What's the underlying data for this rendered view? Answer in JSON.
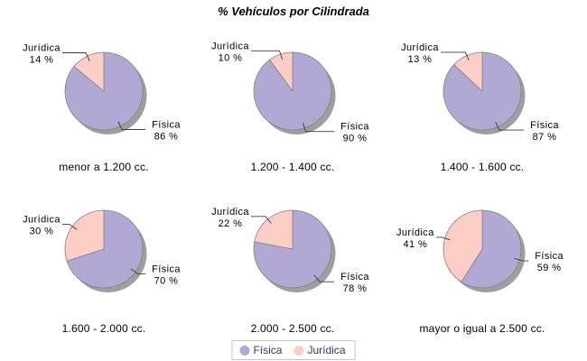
{
  "title": "% Vehículos por Cilindrada",
  "colors": {
    "background": "#ffffff",
    "fisica": "#b1a8d3",
    "juridica": "#fccec6",
    "shadow": "#9e9e9e",
    "slice_stroke": "#828282",
    "leader_line": "#3c3c3c",
    "legend_border": "#c6bfe2",
    "legend_text": "#472b7f"
  },
  "legend": {
    "items": [
      {
        "label": "Física",
        "color_key": "fisica"
      },
      {
        "label": "Jurídica",
        "color_key": "juridica"
      }
    ]
  },
  "chart_data": {
    "type": "pie",
    "title": "% Vehículos por Cilindrada",
    "legend_position": "bottom",
    "value_suffix": " %",
    "series_labels": [
      "Física",
      "Jurídica"
    ],
    "pies": [
      {
        "caption": "menor a 1.200 cc.",
        "slices": [
          {
            "label": "Física",
            "value": 86
          },
          {
            "label": "Jurídica",
            "value": 14
          }
        ]
      },
      {
        "caption": "1.200 - 1.400 cc.",
        "slices": [
          {
            "label": "Física",
            "value": 90
          },
          {
            "label": "Jurídica",
            "value": 10
          }
        ]
      },
      {
        "caption": "1.400 - 1.600 cc.",
        "slices": [
          {
            "label": "Física",
            "value": 87
          },
          {
            "label": "Jurídica",
            "value": 13
          }
        ]
      },
      {
        "caption": "1.600 - 2.000 cc.",
        "slices": [
          {
            "label": "Física",
            "value": 70
          },
          {
            "label": "Jurídica",
            "value": 30
          }
        ]
      },
      {
        "caption": "2.000 - 2.500 cc.",
        "slices": [
          {
            "label": "Física",
            "value": 78
          },
          {
            "label": "Jurídica",
            "value": 22
          }
        ]
      },
      {
        "caption": "mayor o igual a 2.500 cc.",
        "slices": [
          {
            "label": "Física",
            "value": 59
          },
          {
            "label": "Jurídica",
            "value": 41
          }
        ]
      }
    ]
  }
}
